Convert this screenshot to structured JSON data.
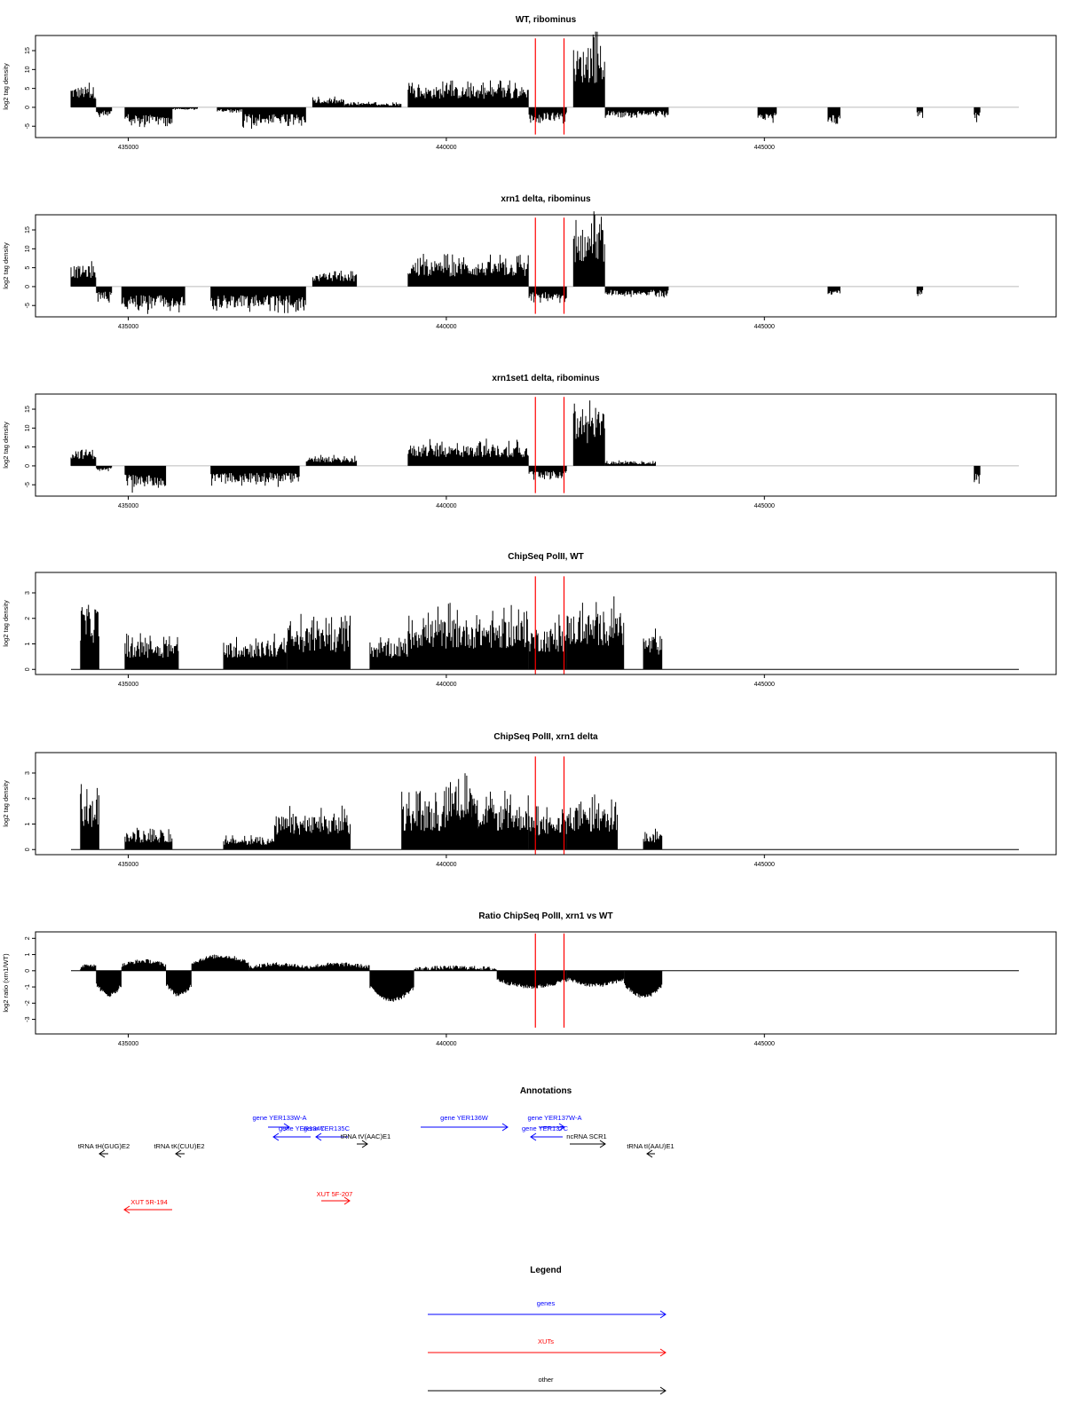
{
  "chart_data": [
    {
      "type": "bar",
      "title": "WT, ribominus",
      "ylabel": "log2 tag density",
      "ylim": [
        -8,
        19
      ],
      "yticks": [
        -5,
        0,
        5,
        10,
        15
      ],
      "xlim": [
        434100,
        449000
      ],
      "xticks": [
        435000,
        440000,
        445000
      ],
      "marker_lines": [
        441400,
        441850
      ],
      "marker_color": "#ff0000",
      "series": [
        {
          "x_start": 434100,
          "x_end": 434500,
          "y": 5
        },
        {
          "x_start": 434500,
          "x_end": 434750,
          "y": -2
        },
        {
          "x_start": 434950,
          "x_end": 435700,
          "y": -4
        },
        {
          "x_start": 435700,
          "x_end": 436100,
          "y": -0.5
        },
        {
          "x_start": 436400,
          "x_end": 436800,
          "y": -1
        },
        {
          "x_start": 436800,
          "x_end": 437800,
          "y": -4
        },
        {
          "x_start": 437900,
          "x_end": 438400,
          "y": 2
        },
        {
          "x_start": 438400,
          "x_end": 439300,
          "y": 1
        },
        {
          "x_start": 439400,
          "x_end": 441300,
          "y": 5
        },
        {
          "x_start": 441300,
          "x_end": 441500,
          "y": -4
        },
        {
          "x_start": 441500,
          "x_end": 441900,
          "y": -3
        },
        {
          "x_start": 442000,
          "x_end": 442500,
          "y": 14
        },
        {
          "x_start": 442500,
          "x_end": 443500,
          "y": -2
        },
        {
          "x_start": 444900,
          "x_end": 445200,
          "y": -3
        },
        {
          "x_start": 446000,
          "x_end": 446200,
          "y": -4
        },
        {
          "x_start": 447400,
          "x_end": 447500,
          "y": -2
        },
        {
          "x_start": 448300,
          "x_end": 448400,
          "y": -3
        }
      ]
    },
    {
      "type": "bar",
      "title": "xrn1 delta, ribominus",
      "ylabel": "log2 tag density",
      "ylim": [
        -8,
        19
      ],
      "yticks": [
        -5,
        0,
        5,
        10,
        15
      ],
      "xlim": [
        434100,
        449000
      ],
      "xticks": [
        435000,
        440000,
        445000
      ],
      "marker_lines": [
        441400,
        441850
      ],
      "marker_color": "#ff0000",
      "series": [
        {
          "x_start": 434100,
          "x_end": 434500,
          "y": 5
        },
        {
          "x_start": 434500,
          "x_end": 434750,
          "y": -3
        },
        {
          "x_start": 434900,
          "x_end": 435900,
          "y": -5
        },
        {
          "x_start": 436300,
          "x_end": 437800,
          "y": -5
        },
        {
          "x_start": 437900,
          "x_end": 438600,
          "y": 3
        },
        {
          "x_start": 439400,
          "x_end": 441300,
          "y": 6
        },
        {
          "x_start": 441300,
          "x_end": 441900,
          "y": -3
        },
        {
          "x_start": 442000,
          "x_end": 442500,
          "y": 14
        },
        {
          "x_start": 442500,
          "x_end": 443500,
          "y": -2
        },
        {
          "x_start": 446000,
          "x_end": 446200,
          "y": -2
        },
        {
          "x_start": 447400,
          "x_end": 447500,
          "y": -2
        }
      ]
    },
    {
      "type": "bar",
      "title": "xrn1set1 delta, ribominus",
      "ylabel": "log2 tag density",
      "ylim": [
        -8,
        19
      ],
      "yticks": [
        -5,
        0,
        5,
        10,
        15
      ],
      "xlim": [
        434100,
        449000
      ],
      "xticks": [
        435000,
        440000,
        445000
      ],
      "marker_lines": [
        441400,
        441850
      ],
      "marker_color": "#ff0000",
      "series": [
        {
          "x_start": 434100,
          "x_end": 434500,
          "y": 4
        },
        {
          "x_start": 434500,
          "x_end": 434750,
          "y": -1
        },
        {
          "x_start": 434950,
          "x_end": 435600,
          "y": -5
        },
        {
          "x_start": 436300,
          "x_end": 437700,
          "y": -4
        },
        {
          "x_start": 437800,
          "x_end": 438600,
          "y": 2
        },
        {
          "x_start": 439400,
          "x_end": 441300,
          "y": 5
        },
        {
          "x_start": 441300,
          "x_end": 441900,
          "y": -3
        },
        {
          "x_start": 442000,
          "x_end": 442500,
          "y": 13
        },
        {
          "x_start": 442500,
          "x_end": 443300,
          "y": 1
        },
        {
          "x_start": 448300,
          "x_end": 448400,
          "y": -4
        }
      ]
    },
    {
      "type": "bar",
      "title": "ChipSeq PolII, WT",
      "ylabel": "log2 tag density",
      "ylim": [
        -0.2,
        3.8
      ],
      "yticks": [
        0,
        1,
        2,
        3
      ],
      "xlim": [
        434100,
        449000
      ],
      "xticks": [
        435000,
        440000,
        445000
      ],
      "marker_lines": [
        441400,
        441850
      ],
      "marker_color": "#ff0000",
      "series": [
        {
          "x_start": 434250,
          "x_end": 434550,
          "y": 2.3
        },
        {
          "x_start": 434950,
          "x_end": 435800,
          "y": 1
        },
        {
          "x_start": 436500,
          "x_end": 437500,
          "y": 1
        },
        {
          "x_start": 437500,
          "x_end": 438500,
          "y": 1.5
        },
        {
          "x_start": 438800,
          "x_end": 439400,
          "y": 1
        },
        {
          "x_start": 439400,
          "x_end": 441300,
          "y": 1.8
        },
        {
          "x_start": 441300,
          "x_end": 441900,
          "y": 1.5
        },
        {
          "x_start": 441900,
          "x_end": 442800,
          "y": 2
        },
        {
          "x_start": 443100,
          "x_end": 443400,
          "y": 1.2
        }
      ]
    },
    {
      "type": "bar",
      "title": "ChipSeq PolII, xrn1 delta",
      "ylabel": "log2 tag density",
      "ylim": [
        -0.2,
        3.8
      ],
      "yticks": [
        0,
        1,
        2,
        3
      ],
      "xlim": [
        434100,
        449000
      ],
      "xticks": [
        435000,
        440000,
        445000
      ],
      "marker_lines": [
        441400,
        441850
      ],
      "marker_color": "#ff0000",
      "series": [
        {
          "x_start": 434250,
          "x_end": 434550,
          "y": 1.8
        },
        {
          "x_start": 434950,
          "x_end": 435700,
          "y": 0.6
        },
        {
          "x_start": 436500,
          "x_end": 437300,
          "y": 0.4
        },
        {
          "x_start": 437300,
          "x_end": 438500,
          "y": 1.2
        },
        {
          "x_start": 439300,
          "x_end": 441300,
          "y": 1.6
        },
        {
          "x_start": 440000,
          "x_end": 440500,
          "y": 2.3
        },
        {
          "x_start": 441300,
          "x_end": 441900,
          "y": 1.2
        },
        {
          "x_start": 441900,
          "x_end": 442700,
          "y": 1.5
        },
        {
          "x_start": 443100,
          "x_end": 443400,
          "y": 0.6
        }
      ]
    },
    {
      "type": "area",
      "title": "Ratio ChipSeq PolII, xrn1 vs WT",
      "ylabel": "log2 ratio (xrn1/WT)",
      "ylim": [
        -3.9,
        2.4
      ],
      "yticks": [
        -3,
        -2,
        -1,
        0,
        1,
        2
      ],
      "xlim": [
        434100,
        449000
      ],
      "xticks": [
        435000,
        440000,
        445000
      ],
      "marker_lines": [
        441400,
        441850
      ],
      "marker_color": "#ff0000",
      "series": [
        {
          "x_start": 434250,
          "x_end": 434500,
          "y": 0.4
        },
        {
          "x_start": 434500,
          "x_end": 434900,
          "y": -1.5
        },
        {
          "x_start": 434900,
          "x_end": 435600,
          "y": 0.6
        },
        {
          "x_start": 435600,
          "x_end": 436000,
          "y": -1.5
        },
        {
          "x_start": 436000,
          "x_end": 436900,
          "y": 0.9
        },
        {
          "x_start": 436900,
          "x_end": 437800,
          "y": 0.4
        },
        {
          "x_start": 437800,
          "x_end": 438800,
          "y": 0.4
        },
        {
          "x_start": 438800,
          "x_end": 439500,
          "y": -1.8
        },
        {
          "x_start": 439500,
          "x_end": 440800,
          "y": 0.2
        },
        {
          "x_start": 440800,
          "x_end": 441900,
          "y": -1
        },
        {
          "x_start": 441900,
          "x_end": 442800,
          "y": -0.9
        },
        {
          "x_start": 442800,
          "x_end": 443400,
          "y": -1.6
        }
      ]
    }
  ],
  "annotations": {
    "title": "Annotations",
    "items": [
      {
        "label": "gene YER133W-A",
        "type": "gene",
        "strand": "+",
        "color": "#0000ff"
      },
      {
        "label": "gene YER134C",
        "type": "gene",
        "strand": "-",
        "color": "#0000ff"
      },
      {
        "label": "gene YER135C",
        "type": "gene",
        "strand": "-",
        "color": "#0000ff"
      },
      {
        "label": "gene YER136W",
        "type": "gene",
        "strand": "+",
        "color": "#0000ff"
      },
      {
        "label": "gene YER137W-A",
        "type": "gene",
        "strand": "+",
        "color": "#0000ff"
      },
      {
        "label": "gene YER137C",
        "type": "gene",
        "strand": "-",
        "color": "#0000ff"
      },
      {
        "label": "tRNA tH(GUG)E2",
        "type": "other",
        "strand": "-",
        "color": "#000000"
      },
      {
        "label": "tRNA tK(CUU)E2",
        "type": "other",
        "strand": "-",
        "color": "#000000"
      },
      {
        "label": "tRNA tV(AAC)E1",
        "type": "other",
        "strand": "+",
        "color": "#000000"
      },
      {
        "label": "ncRNA SCR1",
        "type": "other",
        "strand": "+",
        "color": "#000000"
      },
      {
        "label": "tRNA tI(AAU)E1",
        "type": "other",
        "strand": "-",
        "color": "#000000"
      },
      {
        "label": "XUT 5R-194",
        "type": "xut",
        "strand": "-",
        "color": "#ff0000"
      },
      {
        "label": "XUT 5F-207",
        "type": "xut",
        "strand": "+",
        "color": "#ff0000"
      }
    ]
  },
  "legend": {
    "title": "Legend",
    "items": [
      {
        "label": "genes",
        "color": "#0000ff"
      },
      {
        "label": "XUTs",
        "color": "#ff0000"
      },
      {
        "label": "other",
        "color": "#000000"
      }
    ]
  }
}
